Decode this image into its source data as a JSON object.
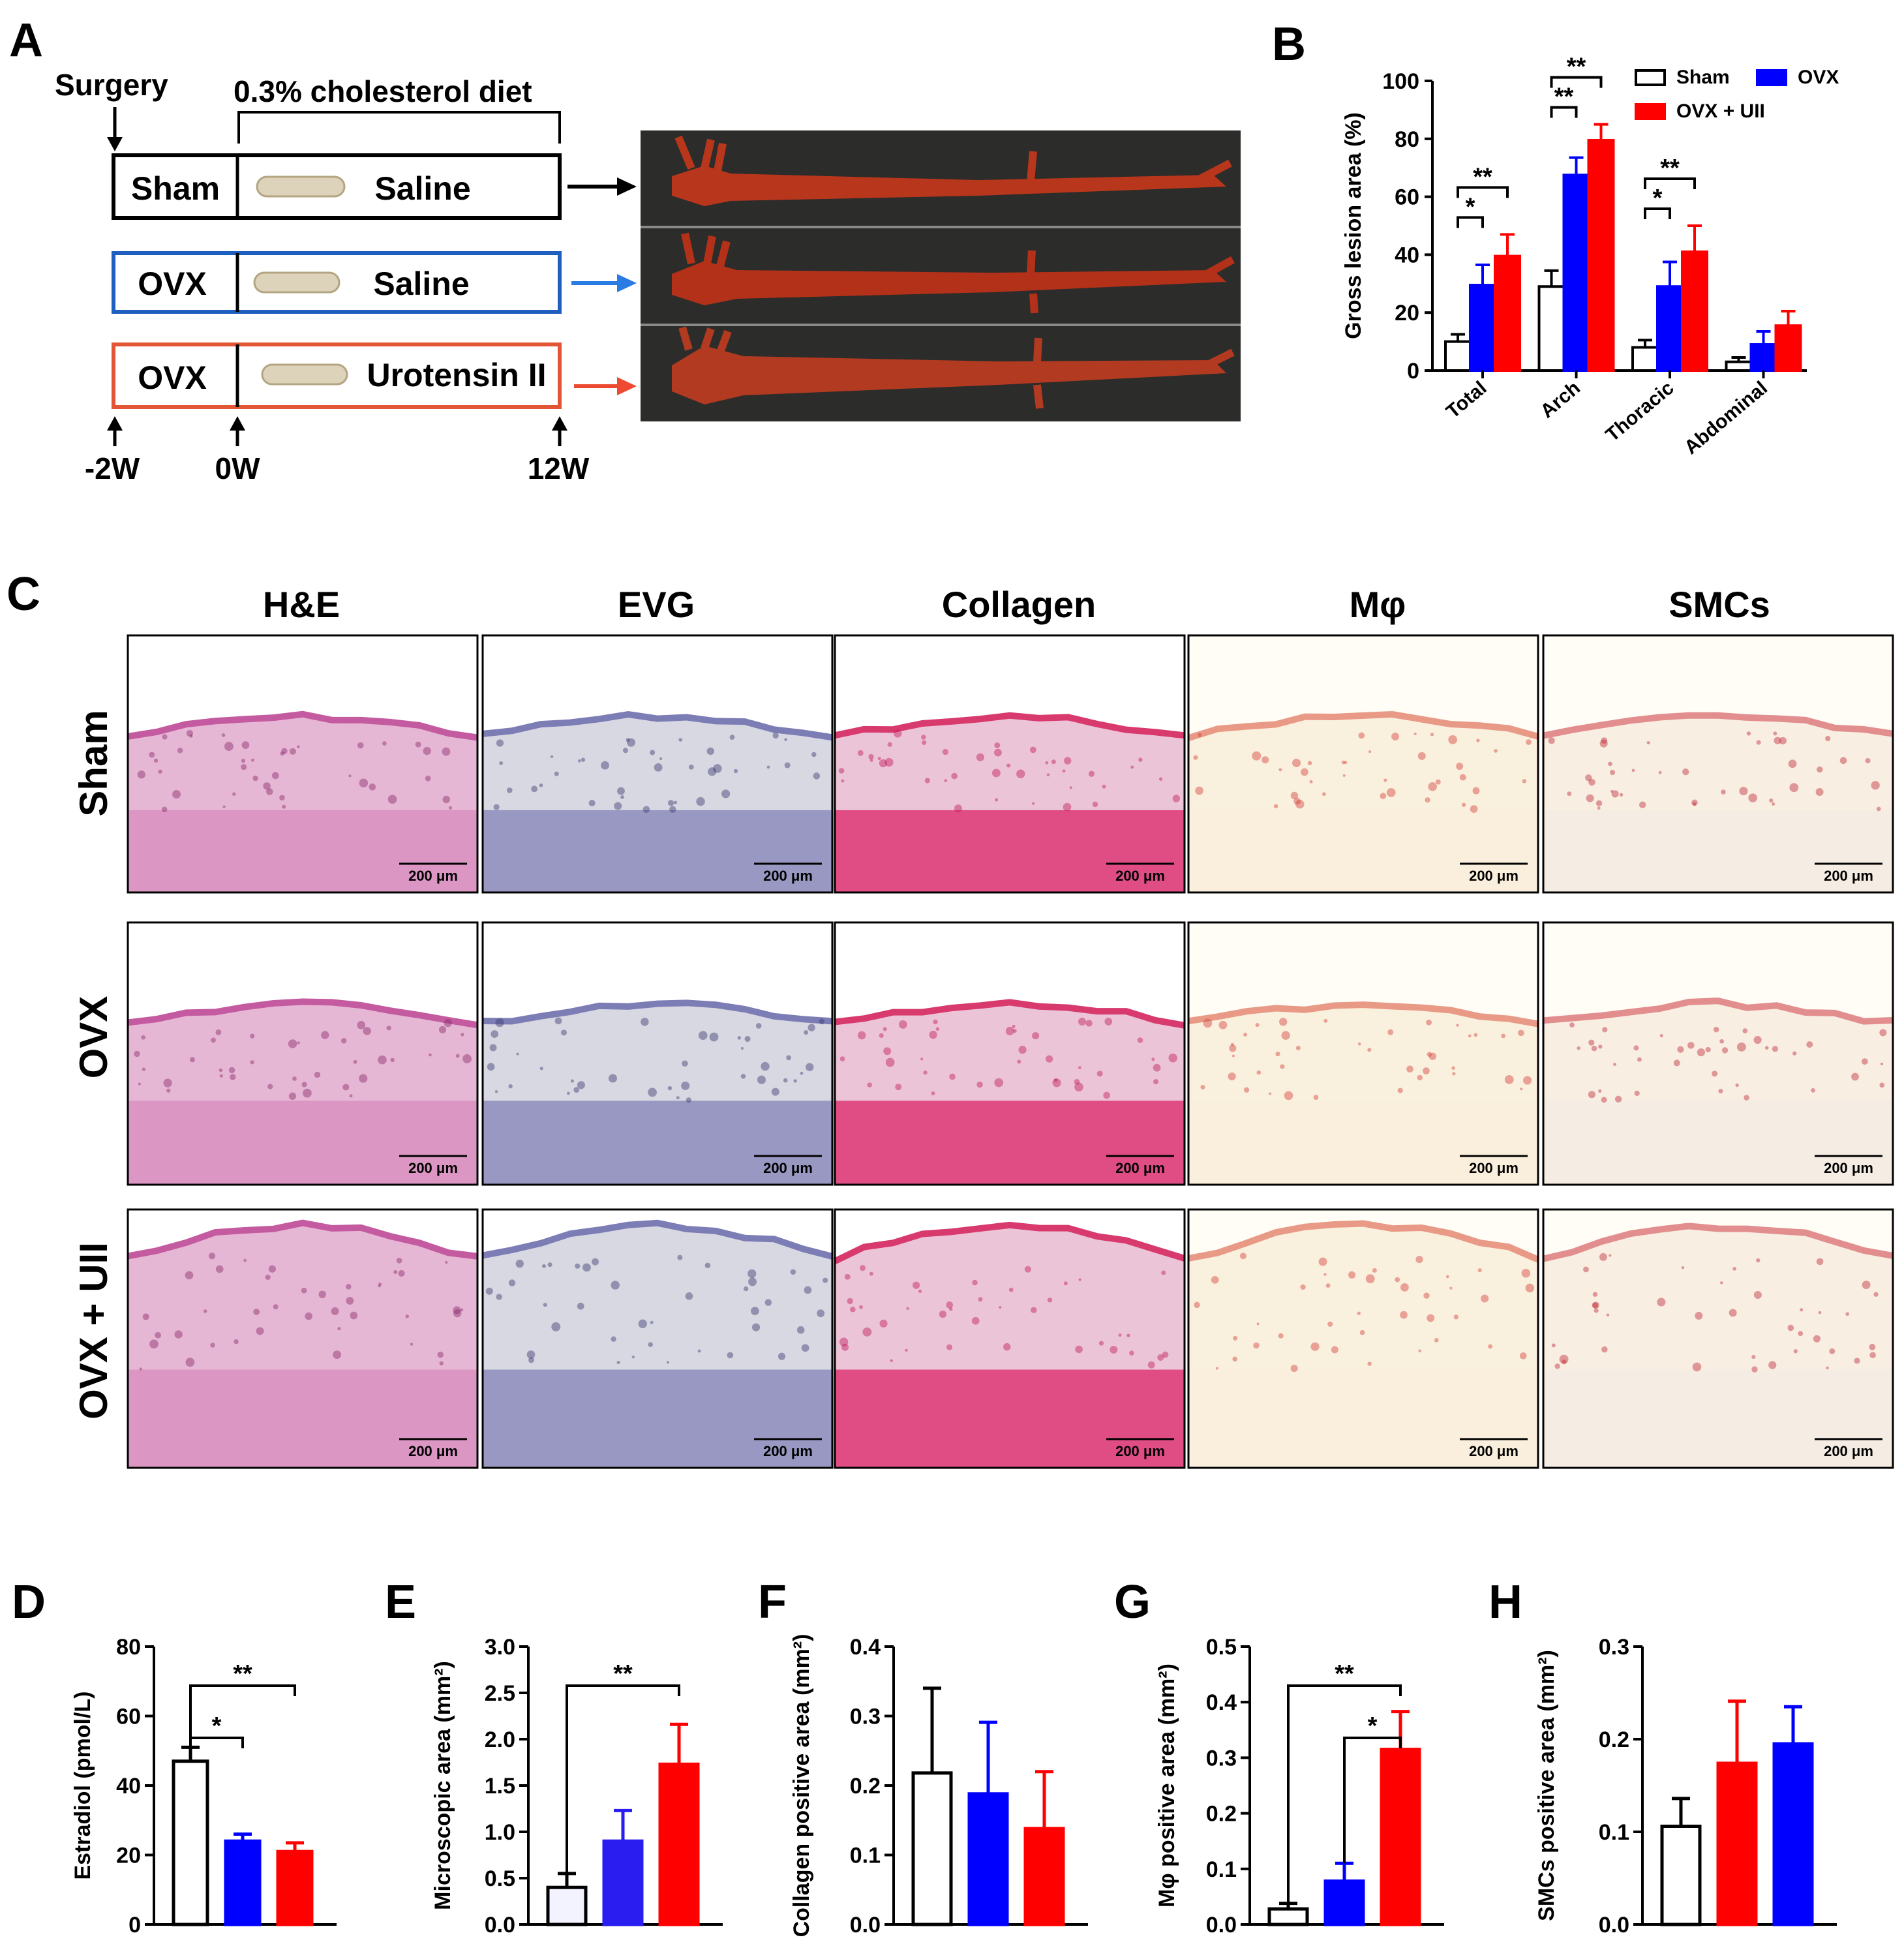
{
  "panel_labels": [
    "A",
    "B",
    "C",
    "D",
    "E",
    "F",
    "G",
    "H"
  ],
  "colors": {
    "sham": "#ffffff",
    "ovx": "#0000ff",
    "ovx_uii": "#ff0000",
    "sham_arrow": "#000000",
    "ovx_arrow": "#2a7be4",
    "ovx_uii_arrow": "#ee4a32",
    "ovx_box": "#1f5fc0",
    "ovx_uii_box": "#e25535",
    "aorta_bg": "#2c2c2a",
    "aorta": "#b8361b"
  },
  "schematic": {
    "surgery_label": "Surgery",
    "diet_label": "0.3% cholesterol diet",
    "rows": [
      {
        "group": "Sham",
        "treatment": "Saline"
      },
      {
        "group": "OVX",
        "treatment": "Saline"
      },
      {
        "group": "OVX",
        "treatment": "Urotensin II"
      }
    ],
    "timeline": [
      "-2W",
      "0W",
      "12W"
    ]
  },
  "histology": {
    "columns": [
      "H&E",
      "EVG",
      "Collagen",
      "Mφ",
      "SMCs"
    ],
    "rows": [
      "Sham",
      "OVX",
      "OVX + UII"
    ],
    "scale_bar": "200 μm"
  },
  "chart_data": [
    {
      "panel": "B",
      "type": "bar",
      "title": "",
      "xlabel": "",
      "ylabel": "Gross lesion  area (%)",
      "ylim": [
        0,
        100
      ],
      "yticks": [
        0,
        20,
        40,
        60,
        80,
        100
      ],
      "categories": [
        "Total",
        "Arch",
        "Thoracic",
        "Abdominal"
      ],
      "series": [
        {
          "name": "Sham",
          "color": "#ffffff",
          "values": [
            10,
            29,
            8,
            3
          ],
          "errors": [
            2.5,
            5.5,
            2.5,
            1.5
          ]
        },
        {
          "name": "OVX",
          "color": "#0000ff",
          "values": [
            29.5,
            67.5,
            29,
            9
          ],
          "errors": [
            7,
            6,
            8.5,
            4.5
          ]
        },
        {
          "name": "OVX + UII",
          "color": "#ff0000",
          "values": [
            39.5,
            79.5,
            41,
            15.5
          ],
          "errors": [
            7.5,
            5.5,
            9,
            5
          ]
        }
      ],
      "legend": [
        "Sham",
        "OVX",
        "OVX + UII"
      ],
      "legend_position": "top-right",
      "significance": [
        {
          "category": "Total",
          "from": "Sham",
          "to": "OVX",
          "label": "*"
        },
        {
          "category": "Total",
          "from": "Sham",
          "to": "OVX + UII",
          "label": "**"
        },
        {
          "category": "Arch",
          "from": "Sham",
          "to": "OVX",
          "label": "**"
        },
        {
          "category": "Arch",
          "from": "Sham",
          "to": "OVX + UII",
          "label": "**"
        },
        {
          "category": "Thoracic",
          "from": "Sham",
          "to": "OVX",
          "label": "*"
        },
        {
          "category": "Thoracic",
          "from": "Sham",
          "to": "OVX + UII",
          "label": "**"
        }
      ]
    },
    {
      "panel": "D",
      "type": "bar",
      "ylabel": "Estradiol (pmol/L)",
      "ylim": [
        0,
        80
      ],
      "yticks": [
        0,
        20,
        40,
        60,
        80
      ],
      "categories": [
        "Sham",
        "OVX",
        "OVX + UII"
      ],
      "colors": [
        "#ffffff",
        "#0000ff",
        "#ff0000"
      ],
      "values": [
        47,
        24,
        21
      ],
      "errors": [
        4,
        2,
        2.5
      ],
      "significance": [
        {
          "from": 0,
          "to": 1,
          "label": "*"
        },
        {
          "from": 0,
          "to": 2,
          "label": "**"
        }
      ]
    },
    {
      "panel": "E",
      "type": "bar",
      "ylabel": "Microscopic area (mm²)",
      "ylim": [
        0,
        3.0
      ],
      "yticks": [
        "0.0",
        "0.5",
        "1.0",
        "1.5",
        "2.0",
        "2.5",
        "3.0"
      ],
      "categories": [
        "Sham",
        "OVX",
        "OVX + UII"
      ],
      "colors": [
        "#f3f2ff",
        "#2a1df0",
        "#ff0000"
      ],
      "values": [
        0.4,
        0.9,
        1.73
      ],
      "errors": [
        0.15,
        0.33,
        0.43
      ],
      "significance": [
        {
          "from": 0,
          "to": 2,
          "label": "**"
        }
      ]
    },
    {
      "panel": "F",
      "type": "bar",
      "ylabel": "Collagen positive area (mm²)",
      "ylim": [
        0,
        0.4
      ],
      "yticks": [
        "0.0",
        "0.1",
        "0.2",
        "0.3",
        "0.4"
      ],
      "categories": [
        "Sham",
        "OVX",
        "OVX + UII"
      ],
      "colors": [
        "#ffffff",
        "#0000ff",
        "#ff0000"
      ],
      "values": [
        0.218,
        0.188,
        0.138
      ],
      "errors": [
        0.122,
        0.103,
        0.082
      ],
      "significance": []
    },
    {
      "panel": "G",
      "type": "bar",
      "ylabel": "Mφ positive area (mm²)",
      "ylim": [
        0,
        0.5
      ],
      "yticks": [
        "0.0",
        "0.1",
        "0.2",
        "0.3",
        "0.4",
        "0.5"
      ],
      "categories": [
        "Sham",
        "OVX",
        "OVX + UII"
      ],
      "colors": [
        "#ffffff",
        "#0000ff",
        "#ff0000"
      ],
      "values": [
        0.028,
        0.078,
        0.315
      ],
      "errors": [
        0.01,
        0.032,
        0.068
      ],
      "significance": [
        {
          "from": 0,
          "to": 2,
          "label": "**"
        },
        {
          "from": 1,
          "to": 2,
          "label": "*"
        }
      ]
    },
    {
      "panel": "H",
      "type": "bar",
      "ylabel": "SMCs positive area (mm²)",
      "ylim": [
        0,
        0.3
      ],
      "yticks": [
        "0.0",
        "0.1",
        "0.2",
        "0.3"
      ],
      "categories": [
        "Sham",
        "OVX + UII",
        "OVX"
      ],
      "colors": [
        "#ffffff",
        "#ff0000",
        "#0000ff"
      ],
      "values": [
        0.106,
        0.174,
        0.195
      ],
      "errors": [
        0.03,
        0.067,
        0.04
      ],
      "significance": []
    }
  ]
}
